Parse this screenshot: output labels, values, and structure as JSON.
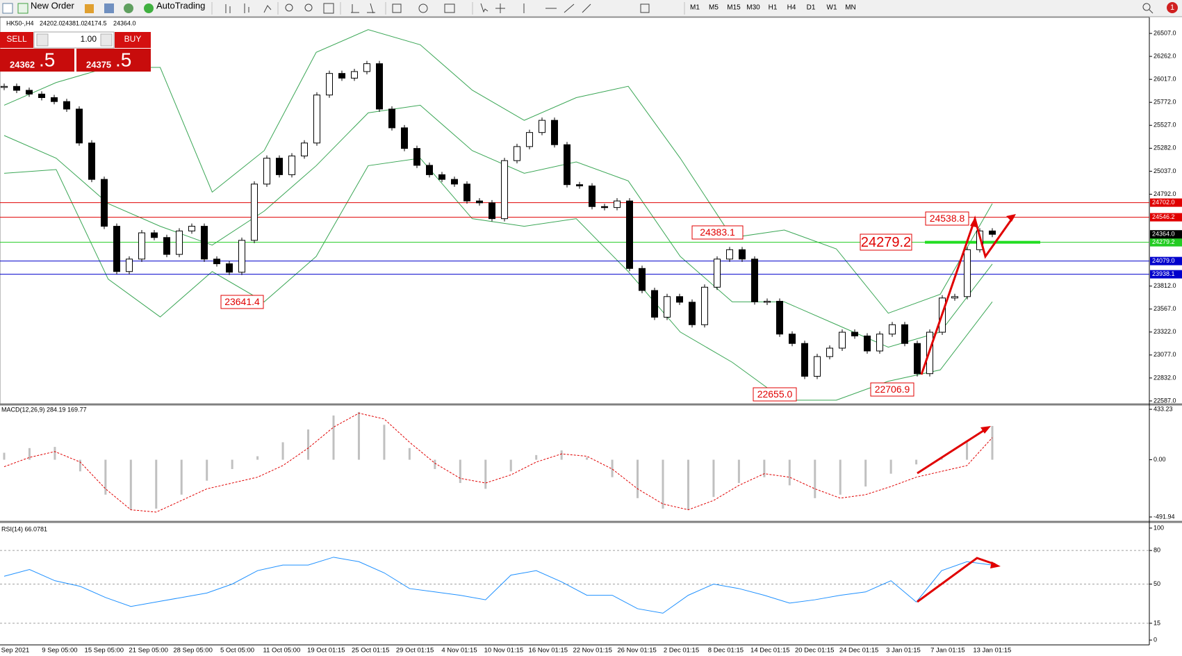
{
  "toolbar": {
    "new_order": "New Order",
    "auto_trading": "AutoTrading",
    "timeframes": [
      "M1",
      "M5",
      "M15",
      "M30",
      "H1",
      "H4",
      "D1",
      "W1",
      "MN"
    ],
    "notifications": "1"
  },
  "trade_panel": {
    "sell": "SELL",
    "lot": "1.00",
    "buy": "BUY",
    "bid_main": "24362",
    "bid_frac": ".5",
    "ask_main": "24375",
    "ask_frac": ".5"
  },
  "chart_data": [
    {
      "type": "candlestick",
      "symbol": "HK50-,H4",
      "ohlc": [
        "24202.0",
        "24381.0",
        "24174.5",
        "24364.0"
      ],
      "values": [
        25942,
        25900,
        25860,
        25822,
        25780,
        25700,
        25338,
        24950,
        24450,
        23967,
        24100,
        24380,
        24330,
        24150,
        24400,
        24450,
        24100,
        24050,
        23960,
        24300,
        24900,
        25176,
        25000,
        25200,
        25338,
        25850,
        26080,
        26030,
        26100,
        26184,
        25700,
        25500,
        25280,
        25100,
        25000,
        24950,
        24900,
        24720,
        24700,
        24531,
        25150,
        25300,
        25450,
        25580,
        25320,
        24894,
        24880,
        24660,
        24650,
        24720,
        24000,
        23765,
        23480,
        23700,
        23640,
        23400,
        23800,
        24100,
        24200,
        24100,
        23644,
        23650,
        23300,
        23200,
        22850,
        23060,
        23150,
        23320,
        23280,
        23120,
        23300,
        23400,
        23200,
        22878,
        23320,
        23685,
        23700,
        24200,
        24400,
        24364
      ],
      "color_up": "#ffffff",
      "color_down": "#000000",
      "bands": {
        "color": "#3aa655",
        "upper": [
          25741,
          25983,
          26144,
          26144,
          24814,
          25257,
          26305,
          26547,
          26386,
          25902,
          25580,
          25822,
          25943,
          25176,
          24329,
          24410,
          24209,
          23523,
          23725,
          24692
        ],
        "middle": [
          25418,
          25176,
          24692,
          24450,
          24249,
          24612,
          25096,
          25660,
          25741,
          25257,
          25015,
          25136,
          24934,
          24128,
          23644,
          23644,
          23402,
          23160,
          23322,
          24047
        ],
        "lower": [
          25015,
          25055,
          23886,
          23483,
          23967,
          23644,
          24128,
          25096,
          25176,
          24531,
          24450,
          24531,
          23967,
          23322,
          22999,
          22595,
          22595,
          22797,
          22918,
          23644
        ]
      },
      "ylim": [
        22557,
        26678
      ],
      "yticks": [
        {
          "value": 26507,
          "label": "26507.0"
        },
        {
          "value": 26262,
          "label": "26262.0"
        },
        {
          "value": 26017,
          "label": "26017.0"
        },
        {
          "value": 25772,
          "label": "25772.0"
        },
        {
          "value": 25527,
          "label": "25527.0"
        },
        {
          "value": 25282,
          "label": "25282.0"
        },
        {
          "value": 25037,
          "label": "25037.0"
        },
        {
          "value": 24792,
          "label": "24792.0"
        },
        {
          "value": 23812,
          "label": "23812.0"
        },
        {
          "value": 23567,
          "label": "23567.0"
        },
        {
          "value": 23322,
          "label": "23322.0"
        },
        {
          "value": 23077,
          "label": "23077.0"
        },
        {
          "value": 22832,
          "label": "22832.0"
        },
        {
          "value": 22587,
          "label": "22587.0"
        }
      ],
      "levels": [
        {
          "value": 24702,
          "label": "24702.0",
          "color": "#e00000"
        },
        {
          "value": 24546.2,
          "label": "24546.2",
          "color": "#e00000"
        },
        {
          "value": 24279.2,
          "label": "24279.2",
          "color": "#22cc22"
        },
        {
          "value": 24079,
          "label": "24079.0",
          "color": "#0000cc"
        },
        {
          "value": 23938.1,
          "label": "23938.1",
          "color": "#0000cc"
        }
      ],
      "current": {
        "value": 24364,
        "label": "24364.0"
      },
      "annotations": [
        "23641.4",
        "24383.1",
        "24538.8",
        "24279.2",
        "22655.0",
        "22706.9"
      ],
      "date_labels": [
        "Sep 2021",
        "9 Sep 05:00",
        "15 Sep 05:00",
        "21 Sep 05:00",
        "28 Sep 05:00",
        "5 Oct 05:00",
        "11 Oct 05:00",
        "19 Oct 01:15",
        "25 Oct 01:15",
        "29 Oct 01:15",
        "4 Nov 01:15",
        "10 Nov 01:15",
        "16 Nov 01:15",
        "22 Nov 01:15",
        "26 Nov 01:15",
        "2 Dec 01:15",
        "8 Dec 01:15",
        "14 Dec 01:15",
        "20 Dec 01:15",
        "24 Dec 01:15",
        "3 Jan 01:15",
        "7 Jan 01:15",
        "13 Jan 01:15"
      ]
    },
    {
      "type": "macd",
      "title": "MACD(12,26,9) 284.19 169.77",
      "histogram": [
        60,
        100,
        110,
        -100,
        -300,
        -430,
        -420,
        -300,
        -180,
        -80,
        30,
        150,
        260,
        380,
        410,
        300,
        100,
        -80,
        -200,
        -250,
        -100,
        40,
        80,
        20,
        -150,
        -330,
        -420,
        -430,
        -320,
        -200,
        -150,
        -220,
        -330,
        -300,
        -230,
        -120,
        -40,
        20,
        150,
        290
      ],
      "signal": [
        -60,
        20,
        70,
        -20,
        -250,
        -430,
        -450,
        -350,
        -250,
        -200,
        -150,
        -50,
        100,
        280,
        400,
        350,
        150,
        -30,
        -160,
        -200,
        -130,
        -20,
        50,
        30,
        -80,
        -250,
        -380,
        -430,
        -350,
        -220,
        -120,
        -150,
        -250,
        -330,
        -300,
        -230,
        -150,
        -100,
        -50,
        190
      ],
      "hist_color": "#c0c0c0",
      "signal_color": "#e00000",
      "ylim": [
        -528,
        469
      ],
      "yticks": [
        433.23,
        {
          "value": 0,
          "label": "0.00"
        },
        -491.94
      ]
    },
    {
      "type": "line",
      "title": "RSI(14) 66.0781",
      "values": [
        57,
        63,
        53,
        48,
        38,
        30,
        34,
        38,
        42,
        50,
        62,
        67,
        67,
        74,
        70,
        60,
        46,
        43,
        40,
        36,
        58,
        62,
        52,
        40,
        40,
        28,
        24,
        40,
        50,
        46,
        40,
        33,
        36,
        40,
        43,
        53,
        34,
        62,
        70,
        67
      ],
      "color": "#1e90ff",
      "ylim": [
        -4.3,
        104.3
      ],
      "yticks": [
        100,
        80,
        50,
        15,
        0
      ],
      "levels": [
        80,
        50,
        15
      ]
    }
  ]
}
